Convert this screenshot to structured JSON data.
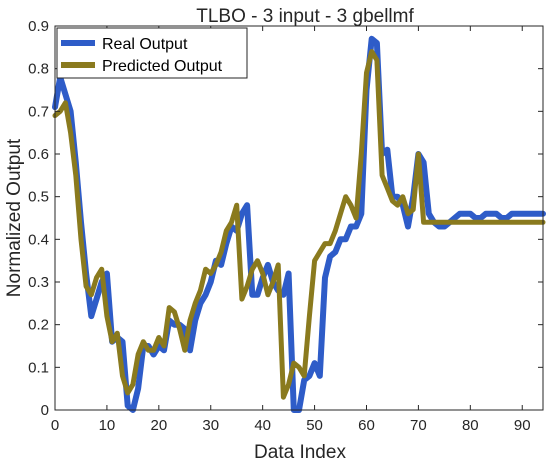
{
  "chart_data": {
    "type": "line",
    "title": "TLBO - 3 input - 3 gbellmf",
    "xlabel": "Data Index",
    "ylabel": "Normalized Output",
    "xlim": [
      0,
      94
    ],
    "ylim": [
      0,
      0.9
    ],
    "xticks": [
      0,
      10,
      20,
      30,
      40,
      50,
      60,
      70,
      80,
      90
    ],
    "yticks": [
      0,
      0.1,
      0.2,
      0.3,
      0.4,
      0.5,
      0.6,
      0.7,
      0.8,
      0.9
    ],
    "xtick_labels": [
      "0",
      "10",
      "20",
      "30",
      "40",
      "50",
      "60",
      "70",
      "80",
      "90"
    ],
    "ytick_labels": [
      "0",
      "0.1",
      "0.2",
      "0.3",
      "0.4",
      "0.5",
      "0.6",
      "0.7",
      "0.8",
      "0.9"
    ],
    "grid": false,
    "legend_position": "top-left",
    "x": [
      0,
      1,
      2,
      3,
      4,
      5,
      6,
      7,
      8,
      9,
      10,
      11,
      12,
      13,
      14,
      15,
      16,
      17,
      18,
      19,
      20,
      21,
      22,
      23,
      24,
      25,
      26,
      27,
      28,
      29,
      30,
      31,
      32,
      33,
      34,
      35,
      36,
      37,
      38,
      39,
      40,
      41,
      42,
      43,
      44,
      45,
      46,
      47,
      48,
      49,
      50,
      51,
      52,
      53,
      54,
      55,
      56,
      57,
      58,
      59,
      60,
      61,
      62,
      63,
      64,
      65,
      66,
      67,
      68,
      69,
      70,
      71,
      72,
      73,
      74,
      75,
      76,
      77,
      78,
      79,
      80,
      81,
      82,
      83,
      84,
      85,
      86,
      87,
      88,
      89,
      90,
      91,
      92,
      93,
      94
    ],
    "series": [
      {
        "name": "Real Output",
        "color": "#2e5cc8",
        "values": [
          0.71,
          0.78,
          0.74,
          0.7,
          0.58,
          0.44,
          0.32,
          0.22,
          0.26,
          0.3,
          0.32,
          0.16,
          0.17,
          0.16,
          0.01,
          0.0,
          0.05,
          0.15,
          0.15,
          0.13,
          0.15,
          0.14,
          0.21,
          0.2,
          0.2,
          0.19,
          0.14,
          0.21,
          0.25,
          0.27,
          0.3,
          0.35,
          0.34,
          0.39,
          0.43,
          0.42,
          0.46,
          0.48,
          0.27,
          0.27,
          0.31,
          0.34,
          0.3,
          0.28,
          0.27,
          0.32,
          0.0,
          0.0,
          0.07,
          0.08,
          0.11,
          0.08,
          0.31,
          0.36,
          0.37,
          0.4,
          0.4,
          0.43,
          0.43,
          0.46,
          0.75,
          0.87,
          0.86,
          0.6,
          0.61,
          0.5,
          0.5,
          0.48,
          0.43,
          0.5,
          0.6,
          0.58,
          0.46,
          0.44,
          0.43,
          0.43,
          0.44,
          0.45,
          0.46,
          0.46,
          0.46,
          0.45,
          0.45,
          0.46,
          0.46,
          0.46,
          0.45,
          0.45,
          0.46,
          0.46,
          0.46,
          0.46,
          0.46,
          0.46,
          0.46
        ]
      },
      {
        "name": "Predicted Output",
        "color": "#8a7a1e",
        "values": [
          0.69,
          0.7,
          0.72,
          0.65,
          0.55,
          0.4,
          0.29,
          0.27,
          0.31,
          0.33,
          0.22,
          0.16,
          0.18,
          0.08,
          0.04,
          0.06,
          0.13,
          0.16,
          0.14,
          0.14,
          0.17,
          0.15,
          0.24,
          0.23,
          0.19,
          0.14,
          0.21,
          0.25,
          0.28,
          0.33,
          0.32,
          0.34,
          0.37,
          0.42,
          0.44,
          0.48,
          0.26,
          0.29,
          0.33,
          0.35,
          0.32,
          0.27,
          0.3,
          0.34,
          0.03,
          0.06,
          0.11,
          0.1,
          0.08,
          0.22,
          0.35,
          0.37,
          0.39,
          0.39,
          0.42,
          0.46,
          0.5,
          0.48,
          0.45,
          0.6,
          0.79,
          0.84,
          0.82,
          0.55,
          0.52,
          0.49,
          0.48,
          0.5,
          0.46,
          0.47,
          0.6,
          0.44,
          0.44,
          0.44,
          0.44,
          0.44,
          0.44,
          0.44,
          0.44,
          0.44,
          0.44,
          0.44,
          0.44,
          0.44,
          0.44,
          0.44,
          0.44,
          0.44,
          0.44,
          0.44,
          0.44,
          0.44,
          0.44,
          0.44,
          0.44
        ]
      }
    ]
  }
}
